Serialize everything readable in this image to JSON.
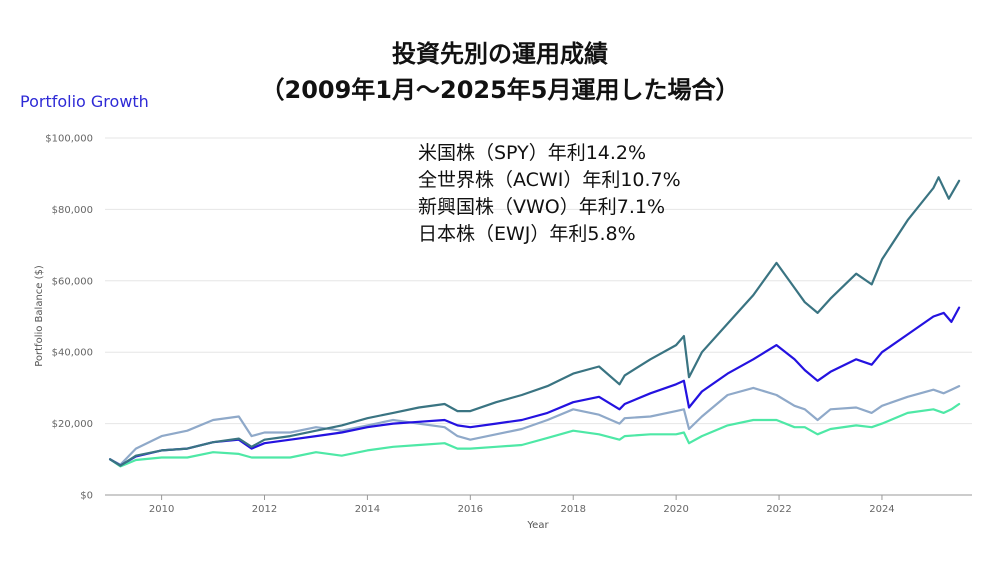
{
  "header": {
    "title_line1": "投資先別の運用成績",
    "title_line2": "（2009年1月～2025年5月運用した場合）",
    "portfolio_label": "Portfolio Growth"
  },
  "legend_text": [
    "米国株（SPY）年利14.2%",
    "全世界株（ACWI）年利10.7%",
    "新興国株（VWO）年利7.1%",
    "日本株（EWJ）年利5.8%"
  ],
  "chart_data": {
    "type": "line",
    "title": "",
    "xlabel": "Year",
    "ylabel": "Portfolio Balance ($)",
    "xlim": [
      2008.9,
      2025.75
    ],
    "ylim": [
      0,
      100000
    ],
    "x_ticks": [
      2010,
      2012,
      2014,
      2016,
      2018,
      2020,
      2022,
      2024
    ],
    "y_ticks": [
      0,
      20000,
      40000,
      60000,
      80000,
      100000
    ],
    "y_tick_labels": [
      "$0",
      "$20,000",
      "$40,000",
      "$60,000",
      "$80,000",
      "$100,000"
    ],
    "grid": true,
    "series": [
      {
        "color": "#3a7482",
        "points": [
          [
            2009.0,
            10000
          ],
          [
            2009.2,
            8200
          ],
          [
            2009.5,
            11000
          ],
          [
            2010.0,
            12500
          ],
          [
            2010.5,
            13000
          ],
          [
            2011.0,
            14800
          ],
          [
            2011.5,
            15800
          ],
          [
            2011.75,
            13500
          ],
          [
            2012.0,
            15500
          ],
          [
            2012.5,
            16500
          ],
          [
            2013.0,
            18000
          ],
          [
            2013.5,
            19500
          ],
          [
            2014.0,
            21500
          ],
          [
            2014.5,
            23000
          ],
          [
            2015.0,
            24500
          ],
          [
            2015.5,
            25500
          ],
          [
            2015.75,
            23500
          ],
          [
            2016.0,
            23500
          ],
          [
            2016.5,
            26000
          ],
          [
            2017.0,
            28000
          ],
          [
            2017.5,
            30500
          ],
          [
            2018.0,
            34000
          ],
          [
            2018.5,
            36000
          ],
          [
            2018.9,
            31000
          ],
          [
            2019.0,
            33500
          ],
          [
            2019.5,
            38000
          ],
          [
            2020.0,
            42000
          ],
          [
            2020.15,
            44500
          ],
          [
            2020.25,
            33000
          ],
          [
            2020.5,
            40000
          ],
          [
            2021.0,
            48000
          ],
          [
            2021.5,
            56000
          ],
          [
            2021.95,
            65000
          ],
          [
            2022.3,
            58000
          ],
          [
            2022.5,
            54000
          ],
          [
            2022.75,
            51000
          ],
          [
            2023.0,
            55000
          ],
          [
            2023.5,
            62000
          ],
          [
            2023.8,
            59000
          ],
          [
            2024.0,
            66000
          ],
          [
            2024.5,
            77000
          ],
          [
            2025.0,
            86000
          ],
          [
            2025.1,
            89000
          ],
          [
            2025.3,
            83000
          ],
          [
            2025.5,
            88000
          ]
        ]
      },
      {
        "color": "#2412e0",
        "points": [
          [
            2009.0,
            10000
          ],
          [
            2009.2,
            8300
          ],
          [
            2009.5,
            10800
          ],
          [
            2010.0,
            12500
          ],
          [
            2010.5,
            13000
          ],
          [
            2011.0,
            14800
          ],
          [
            2011.5,
            15500
          ],
          [
            2011.75,
            13000
          ],
          [
            2012.0,
            14500
          ],
          [
            2012.5,
            15500
          ],
          [
            2013.0,
            16500
          ],
          [
            2013.5,
            17500
          ],
          [
            2014.0,
            19000
          ],
          [
            2014.5,
            20000
          ],
          [
            2015.0,
            20500
          ],
          [
            2015.5,
            21000
          ],
          [
            2015.75,
            19500
          ],
          [
            2016.0,
            19000
          ],
          [
            2016.5,
            20000
          ],
          [
            2017.0,
            21000
          ],
          [
            2017.5,
            23000
          ],
          [
            2018.0,
            26000
          ],
          [
            2018.5,
            27500
          ],
          [
            2018.9,
            24000
          ],
          [
            2019.0,
            25500
          ],
          [
            2019.5,
            28500
          ],
          [
            2020.0,
            31000
          ],
          [
            2020.15,
            32000
          ],
          [
            2020.25,
            24500
          ],
          [
            2020.5,
            29000
          ],
          [
            2021.0,
            34000
          ],
          [
            2021.5,
            38000
          ],
          [
            2021.95,
            42000
          ],
          [
            2022.3,
            38000
          ],
          [
            2022.5,
            35000
          ],
          [
            2022.75,
            32000
          ],
          [
            2023.0,
            34500
          ],
          [
            2023.5,
            38000
          ],
          [
            2023.8,
            36500
          ],
          [
            2024.0,
            40000
          ],
          [
            2024.5,
            45000
          ],
          [
            2025.0,
            50000
          ],
          [
            2025.2,
            51000
          ],
          [
            2025.35,
            48500
          ],
          [
            2025.5,
            52500
          ]
        ]
      },
      {
        "color": "#8fa9c9",
        "points": [
          [
            2009.0,
            10000
          ],
          [
            2009.2,
            8500
          ],
          [
            2009.5,
            13000
          ],
          [
            2010.0,
            16500
          ],
          [
            2010.5,
            18000
          ],
          [
            2011.0,
            21000
          ],
          [
            2011.5,
            22000
          ],
          [
            2011.75,
            16500
          ],
          [
            2012.0,
            17500
          ],
          [
            2012.5,
            17500
          ],
          [
            2013.0,
            19000
          ],
          [
            2013.5,
            18000
          ],
          [
            2014.0,
            19500
          ],
          [
            2014.5,
            21000
          ],
          [
            2015.0,
            20000
          ],
          [
            2015.5,
            19000
          ],
          [
            2015.75,
            16500
          ],
          [
            2016.0,
            15500
          ],
          [
            2016.5,
            17000
          ],
          [
            2017.0,
            18500
          ],
          [
            2017.5,
            21000
          ],
          [
            2018.0,
            24000
          ],
          [
            2018.5,
            22500
          ],
          [
            2018.9,
            20000
          ],
          [
            2019.0,
            21500
          ],
          [
            2019.5,
            22000
          ],
          [
            2020.0,
            23500
          ],
          [
            2020.15,
            24000
          ],
          [
            2020.25,
            18500
          ],
          [
            2020.5,
            22000
          ],
          [
            2021.0,
            28000
          ],
          [
            2021.5,
            30000
          ],
          [
            2021.95,
            28000
          ],
          [
            2022.3,
            25000
          ],
          [
            2022.5,
            24000
          ],
          [
            2022.75,
            21000
          ],
          [
            2023.0,
            24000
          ],
          [
            2023.5,
            24500
          ],
          [
            2023.8,
            23000
          ],
          [
            2024.0,
            25000
          ],
          [
            2024.5,
            27500
          ],
          [
            2025.0,
            29500
          ],
          [
            2025.2,
            28500
          ],
          [
            2025.35,
            29500
          ],
          [
            2025.5,
            30500
          ]
        ]
      },
      {
        "color": "#4ee8a6",
        "points": [
          [
            2009.0,
            10000
          ],
          [
            2009.2,
            8000
          ],
          [
            2009.5,
            9800
          ],
          [
            2010.0,
            10500
          ],
          [
            2010.5,
            10500
          ],
          [
            2011.0,
            12000
          ],
          [
            2011.5,
            11500
          ],
          [
            2011.75,
            10500
          ],
          [
            2012.0,
            10500
          ],
          [
            2012.5,
            10500
          ],
          [
            2013.0,
            12000
          ],
          [
            2013.5,
            11000
          ],
          [
            2014.0,
            12500
          ],
          [
            2014.5,
            13500
          ],
          [
            2015.0,
            14000
          ],
          [
            2015.5,
            14500
          ],
          [
            2015.75,
            13000
          ],
          [
            2016.0,
            13000
          ],
          [
            2016.5,
            13500
          ],
          [
            2017.0,
            14000
          ],
          [
            2017.5,
            16000
          ],
          [
            2018.0,
            18000
          ],
          [
            2018.5,
            17000
          ],
          [
            2018.9,
            15500
          ],
          [
            2019.0,
            16500
          ],
          [
            2019.5,
            17000
          ],
          [
            2020.0,
            17000
          ],
          [
            2020.15,
            17500
          ],
          [
            2020.25,
            14500
          ],
          [
            2020.5,
            16500
          ],
          [
            2021.0,
            19500
          ],
          [
            2021.5,
            21000
          ],
          [
            2021.95,
            21000
          ],
          [
            2022.3,
            19000
          ],
          [
            2022.5,
            19000
          ],
          [
            2022.75,
            17000
          ],
          [
            2023.0,
            18500
          ],
          [
            2023.5,
            19500
          ],
          [
            2023.8,
            19000
          ],
          [
            2024.0,
            20000
          ],
          [
            2024.5,
            23000
          ],
          [
            2025.0,
            24000
          ],
          [
            2025.2,
            23000
          ],
          [
            2025.35,
            24000
          ],
          [
            2025.5,
            25500
          ]
        ]
      }
    ]
  }
}
